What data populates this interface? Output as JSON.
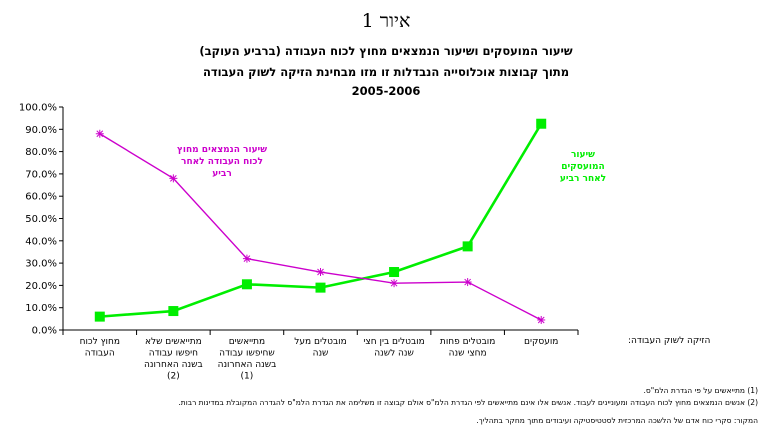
{
  "figure_title": "איור 1",
  "chart_data": {
    "type": "line",
    "title": [
      "שיעור המועסקים ושיעור הנמצאים מחוץ לכוח העבודה (ברביע העוקב)",
      "מתוך קבוצות אוכלוסייה הנבדלות זו מזו מבחינת הזיקה לשוק העבודה",
      "2005-2006"
    ],
    "xlabel": "הזיקה לשוק העבודה:",
    "categories": [
      [
        "מחוץ לכוח",
        "העבודה"
      ],
      [
        "מתייאשים שלא",
        "חיפשו עבודה",
        "בשנה האחרונה",
        "(2)"
      ],
      [
        "מתייאשים",
        "שחיפשו עבודה",
        "בשנה האחרונה",
        "(1)"
      ],
      [
        "מובטלים מעל",
        "שנה"
      ],
      [
        "מובטלים בין חצי",
        "שנה לשנה"
      ],
      [
        "מובטלים פחות",
        "מחצי שנה"
      ],
      [
        "מועסקים"
      ]
    ],
    "yticks": [
      "0.0%",
      "10.0%",
      "20.0%",
      "30.0%",
      "40.0%",
      "50.0%",
      "60.0%",
      "70.0%",
      "80.0%",
      "90.0%",
      "100.0%"
    ],
    "ylim": [
      0,
      100
    ],
    "series": [
      {
        "name": [
          "שיעור",
          "המועסקים",
          "לאחר רביע"
        ],
        "color": "#00ee00",
        "marker": "square",
        "values": [
          6,
          8.5,
          20.5,
          19,
          26,
          37.5,
          92.5
        ]
      },
      {
        "name": [
          "שיעור הנמצאים מחוץ",
          "לכוח העבודה לאחר",
          "רביע"
        ],
        "color": "#cc00cc",
        "marker": "asterisk",
        "values": [
          88,
          68,
          32,
          26,
          21,
          21.5,
          4.5
        ]
      }
    ]
  },
  "notes": [
    "(1) מתייאשים על פי הגדרת הלמ\"ס.",
    "(2) אנשים הנמצאים מחוץ לכוח העבודה ומעוניינים לעבוד. אנשים אלו אינם מתייאשים לפי הגדרת הלמ\"ס אולם קבוצה זו משלימה את הגדרת הלמ\"ס להגדרה המקובלת במדינות רבות.",
    "המקור: סקרי כוח אדם של הלשכה המרכזית לסטטיסטיקה ועיבודים מתוך מחקר בתהליך."
  ]
}
